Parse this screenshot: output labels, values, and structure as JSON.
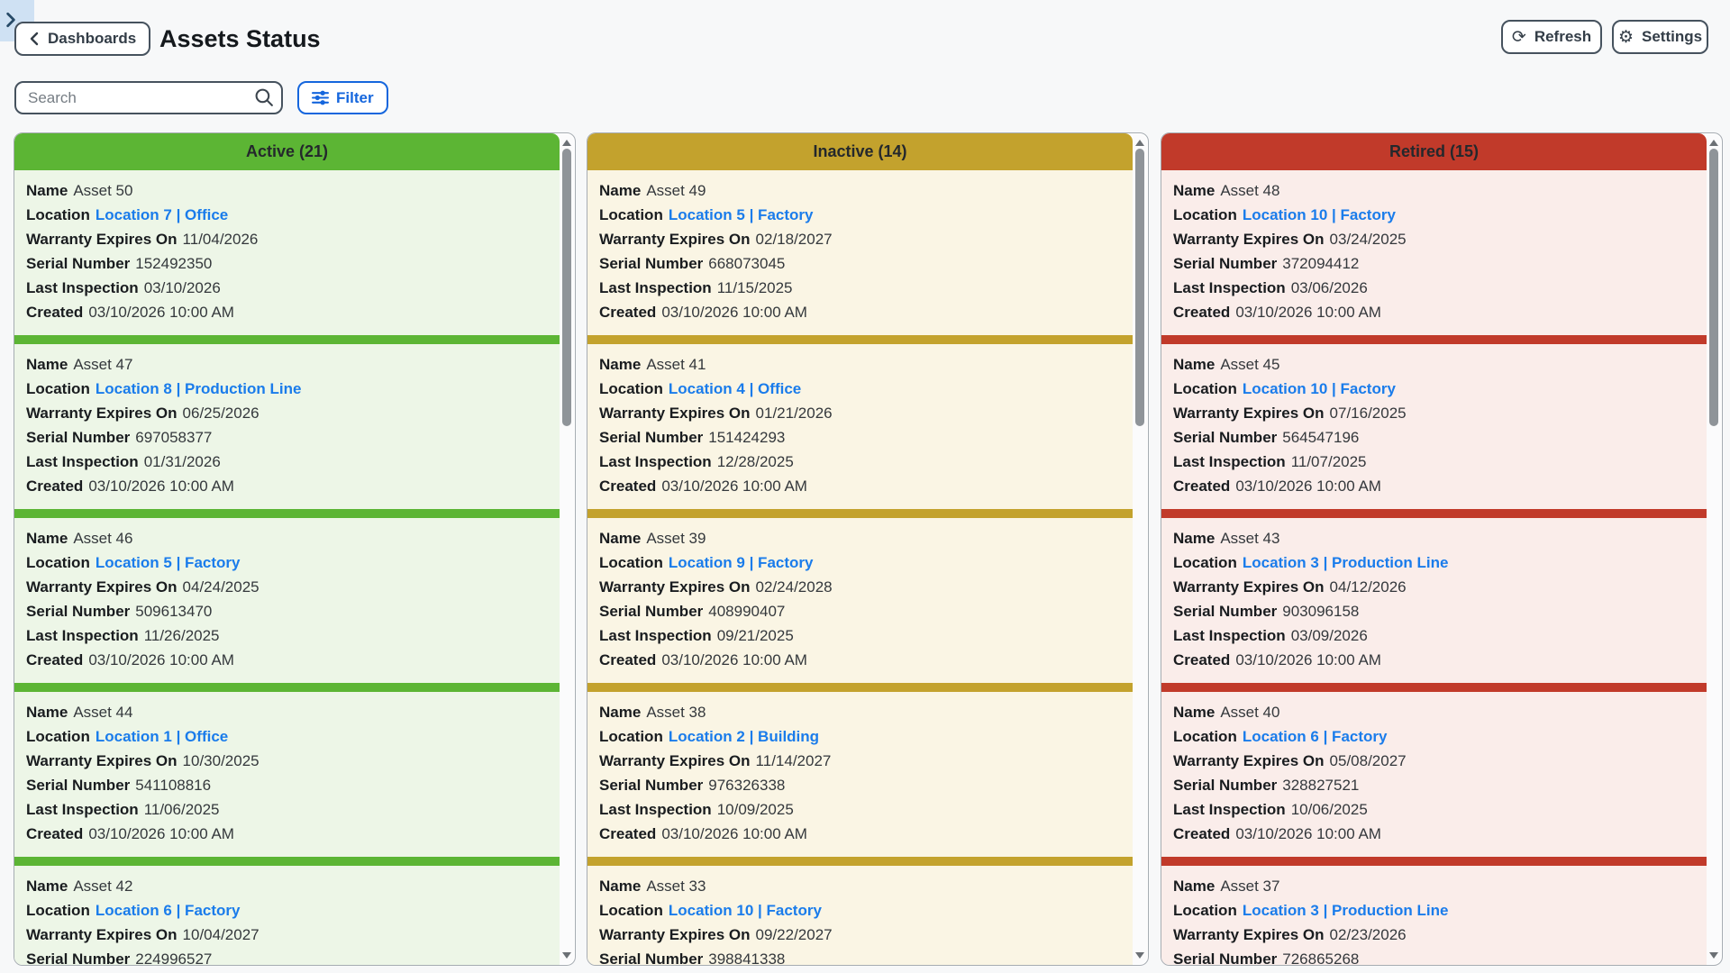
{
  "header": {
    "back_button": "Dashboards",
    "title": "Assets Status",
    "refresh_button": "Refresh",
    "settings_button": "Settings"
  },
  "toolbar": {
    "search_placeholder": "Search",
    "filter_button": "Filter"
  },
  "icons": {
    "refresh_glyph": "⟳",
    "settings_glyph": "⚙"
  },
  "field_order": [
    {
      "key": "name",
      "label": "Name"
    },
    {
      "key": "location",
      "label": "Location"
    },
    {
      "key": "warranty_expires_on",
      "label": "Warranty Expires On"
    },
    {
      "key": "serial_number",
      "label": "Serial Number"
    },
    {
      "key": "last_inspection",
      "label": "Last Inspection"
    },
    {
      "key": "created",
      "label": "Created"
    }
  ],
  "columns": [
    {
      "id": "active",
      "title": "Active (21)",
      "accent": "#5cb534",
      "tint": "#edf6e7",
      "cards": [
        {
          "name": "Asset 50",
          "location": "Location 7 | Office",
          "warranty_expires_on": "11/04/2026",
          "serial_number": "152492350",
          "last_inspection": "03/10/2026",
          "created": "03/10/2026 10:00 AM"
        },
        {
          "name": "Asset 47",
          "location": "Location 8 | Production Line",
          "warranty_expires_on": "06/25/2026",
          "serial_number": "697058377",
          "last_inspection": "01/31/2026",
          "created": "03/10/2026 10:00 AM"
        },
        {
          "name": "Asset 46",
          "location": "Location 5 | Factory",
          "warranty_expires_on": "04/24/2025",
          "serial_number": "509613470",
          "last_inspection": "11/26/2025",
          "created": "03/10/2026 10:00 AM"
        },
        {
          "name": "Asset 44",
          "location": "Location 1 | Office",
          "warranty_expires_on": "10/30/2025",
          "serial_number": "541108816",
          "last_inspection": "11/06/2025",
          "created": "03/10/2026 10:00 AM"
        },
        {
          "name": "Asset 42",
          "location": "Location 6 | Factory",
          "warranty_expires_on": "10/04/2027",
          "serial_number": "224996527",
          "last_inspection": "",
          "created": ""
        }
      ]
    },
    {
      "id": "inactive",
      "title": "Inactive (14)",
      "accent": "#c3a22d",
      "tint": "#faf5e4",
      "cards": [
        {
          "name": "Asset 49",
          "location": "Location 5 | Factory",
          "warranty_expires_on": "02/18/2027",
          "serial_number": "668073045",
          "last_inspection": "11/15/2025",
          "created": "03/10/2026 10:00 AM"
        },
        {
          "name": "Asset 41",
          "location": "Location 4 | Office",
          "warranty_expires_on": "01/21/2026",
          "serial_number": "151424293",
          "last_inspection": "12/28/2025",
          "created": "03/10/2026 10:00 AM"
        },
        {
          "name": "Asset 39",
          "location": "Location 9 | Factory",
          "warranty_expires_on": "02/24/2028",
          "serial_number": "408990407",
          "last_inspection": "09/21/2025",
          "created": "03/10/2026 10:00 AM"
        },
        {
          "name": "Asset 38",
          "location": "Location 2 | Building",
          "warranty_expires_on": "11/14/2027",
          "serial_number": "976326338",
          "last_inspection": "10/09/2025",
          "created": "03/10/2026 10:00 AM"
        },
        {
          "name": "Asset 33",
          "location": "Location 10 | Factory",
          "warranty_expires_on": "09/22/2027",
          "serial_number": "398841338",
          "last_inspection": "",
          "created": ""
        }
      ]
    },
    {
      "id": "retired",
      "title": "Retired (15)",
      "accent": "#c13a2a",
      "tint": "#faedea",
      "cards": [
        {
          "name": "Asset 48",
          "location": "Location 10 | Factory",
          "warranty_expires_on": "03/24/2025",
          "serial_number": "372094412",
          "last_inspection": "03/06/2026",
          "created": "03/10/2026 10:00 AM"
        },
        {
          "name": "Asset 45",
          "location": "Location 10 | Factory",
          "warranty_expires_on": "07/16/2025",
          "serial_number": "564547196",
          "last_inspection": "11/07/2025",
          "created": "03/10/2026 10:00 AM"
        },
        {
          "name": "Asset 43",
          "location": "Location 3 | Production Line",
          "warranty_expires_on": "04/12/2026",
          "serial_number": "903096158",
          "last_inspection": "03/09/2026",
          "created": "03/10/2026 10:00 AM"
        },
        {
          "name": "Asset 40",
          "location": "Location 6 | Factory",
          "warranty_expires_on": "05/08/2027",
          "serial_number": "328827521",
          "last_inspection": "10/06/2025",
          "created": "03/10/2026 10:00 AM"
        },
        {
          "name": "Asset 37",
          "location": "Location 3 | Production Line",
          "warranty_expires_on": "02/23/2026",
          "serial_number": "726865268",
          "last_inspection": "",
          "created": ""
        }
      ]
    }
  ]
}
